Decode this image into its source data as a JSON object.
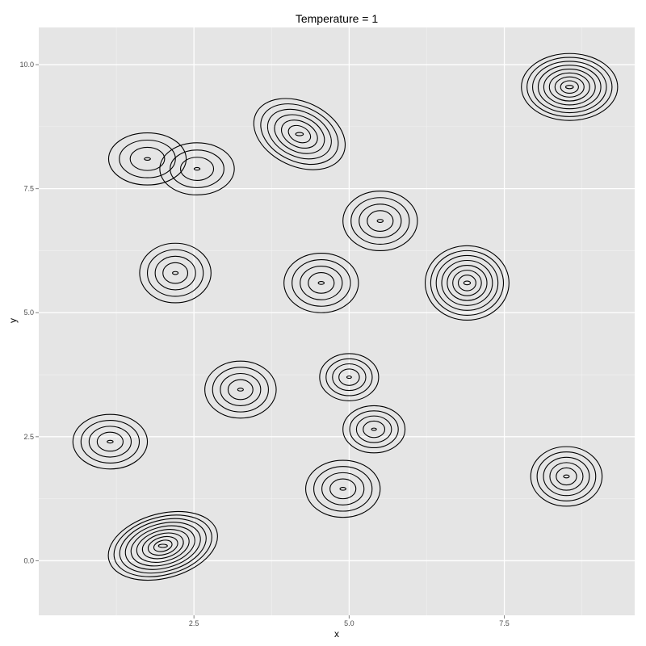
{
  "chart_data": {
    "type": "contour",
    "title": "Temperature = 1",
    "xlabel": "x",
    "ylabel": "y",
    "xlim": [
      0.0,
      9.6
    ],
    "ylim": [
      -1.1,
      10.75
    ],
    "x_ticks": [
      {
        "value": 2.5,
        "label": "2.5"
      },
      {
        "value": 5.0,
        "label": "5.0"
      },
      {
        "value": 7.5,
        "label": "7.5"
      }
    ],
    "y_ticks": [
      {
        "value": 0.0,
        "label": "0.0"
      },
      {
        "value": 2.5,
        "label": "2.5"
      },
      {
        "value": 5.0,
        "label": "5.0"
      },
      {
        "value": 7.5,
        "label": "7.5"
      },
      {
        "value": 10.0,
        "label": "10.0"
      }
    ],
    "grid": true,
    "colors": {
      "panel": "#e5e5e5",
      "grid": "#ffffff",
      "line": "#000000"
    },
    "peaks": [
      {
        "cx": 2.0,
        "cy": 0.3,
        "rx": 1.8,
        "ry": 1.3,
        "rotation": -15,
        "levels": 9
      },
      {
        "cx": 1.15,
        "cy": 2.4,
        "rx": 1.2,
        "ry": 1.1,
        "rotation": 0,
        "levels": 4
      },
      {
        "cx": 3.25,
        "cy": 3.45,
        "rx": 1.15,
        "ry": 1.15,
        "rotation": 0,
        "levels": 4
      },
      {
        "cx": 5.0,
        "cy": 3.7,
        "rx": 0.95,
        "ry": 0.95,
        "rotation": 0,
        "levels": 4
      },
      {
        "cx": 5.4,
        "cy": 2.65,
        "rx": 1.0,
        "ry": 0.95,
        "rotation": 0,
        "levels": 4
      },
      {
        "cx": 4.9,
        "cy": 1.45,
        "rx": 1.2,
        "ry": 1.15,
        "rotation": 0,
        "levels": 4
      },
      {
        "cx": 2.2,
        "cy": 5.8,
        "rx": 1.15,
        "ry": 1.2,
        "rotation": 0,
        "levels": 4
      },
      {
        "cx": 4.55,
        "cy": 5.6,
        "rx": 1.2,
        "ry": 1.2,
        "rotation": 0,
        "levels": 4
      },
      {
        "cx": 5.5,
        "cy": 6.85,
        "rx": 1.2,
        "ry": 1.2,
        "rotation": 0,
        "levels": 4
      },
      {
        "cx": 6.9,
        "cy": 5.6,
        "rx": 1.35,
        "ry": 1.5,
        "rotation": 0,
        "levels": 7
      },
      {
        "cx": 8.5,
        "cy": 1.7,
        "rx": 1.15,
        "ry": 1.2,
        "rotation": 0,
        "levels": 5
      },
      {
        "cx": 8.55,
        "cy": 9.55,
        "rx": 1.55,
        "ry": 1.35,
        "rotation": 0,
        "levels": 8
      },
      {
        "cx": 4.2,
        "cy": 8.6,
        "rx": 1.55,
        "ry": 1.3,
        "rotation": 25,
        "levels": 6
      },
      {
        "cx": 1.75,
        "cy": 8.1,
        "rx": 1.25,
        "ry": 1.05,
        "rotation": 0,
        "levels": 3
      },
      {
        "cx": 2.55,
        "cy": 7.9,
        "rx": 1.2,
        "ry": 1.05,
        "rotation": 0,
        "levels": 3
      }
    ]
  }
}
